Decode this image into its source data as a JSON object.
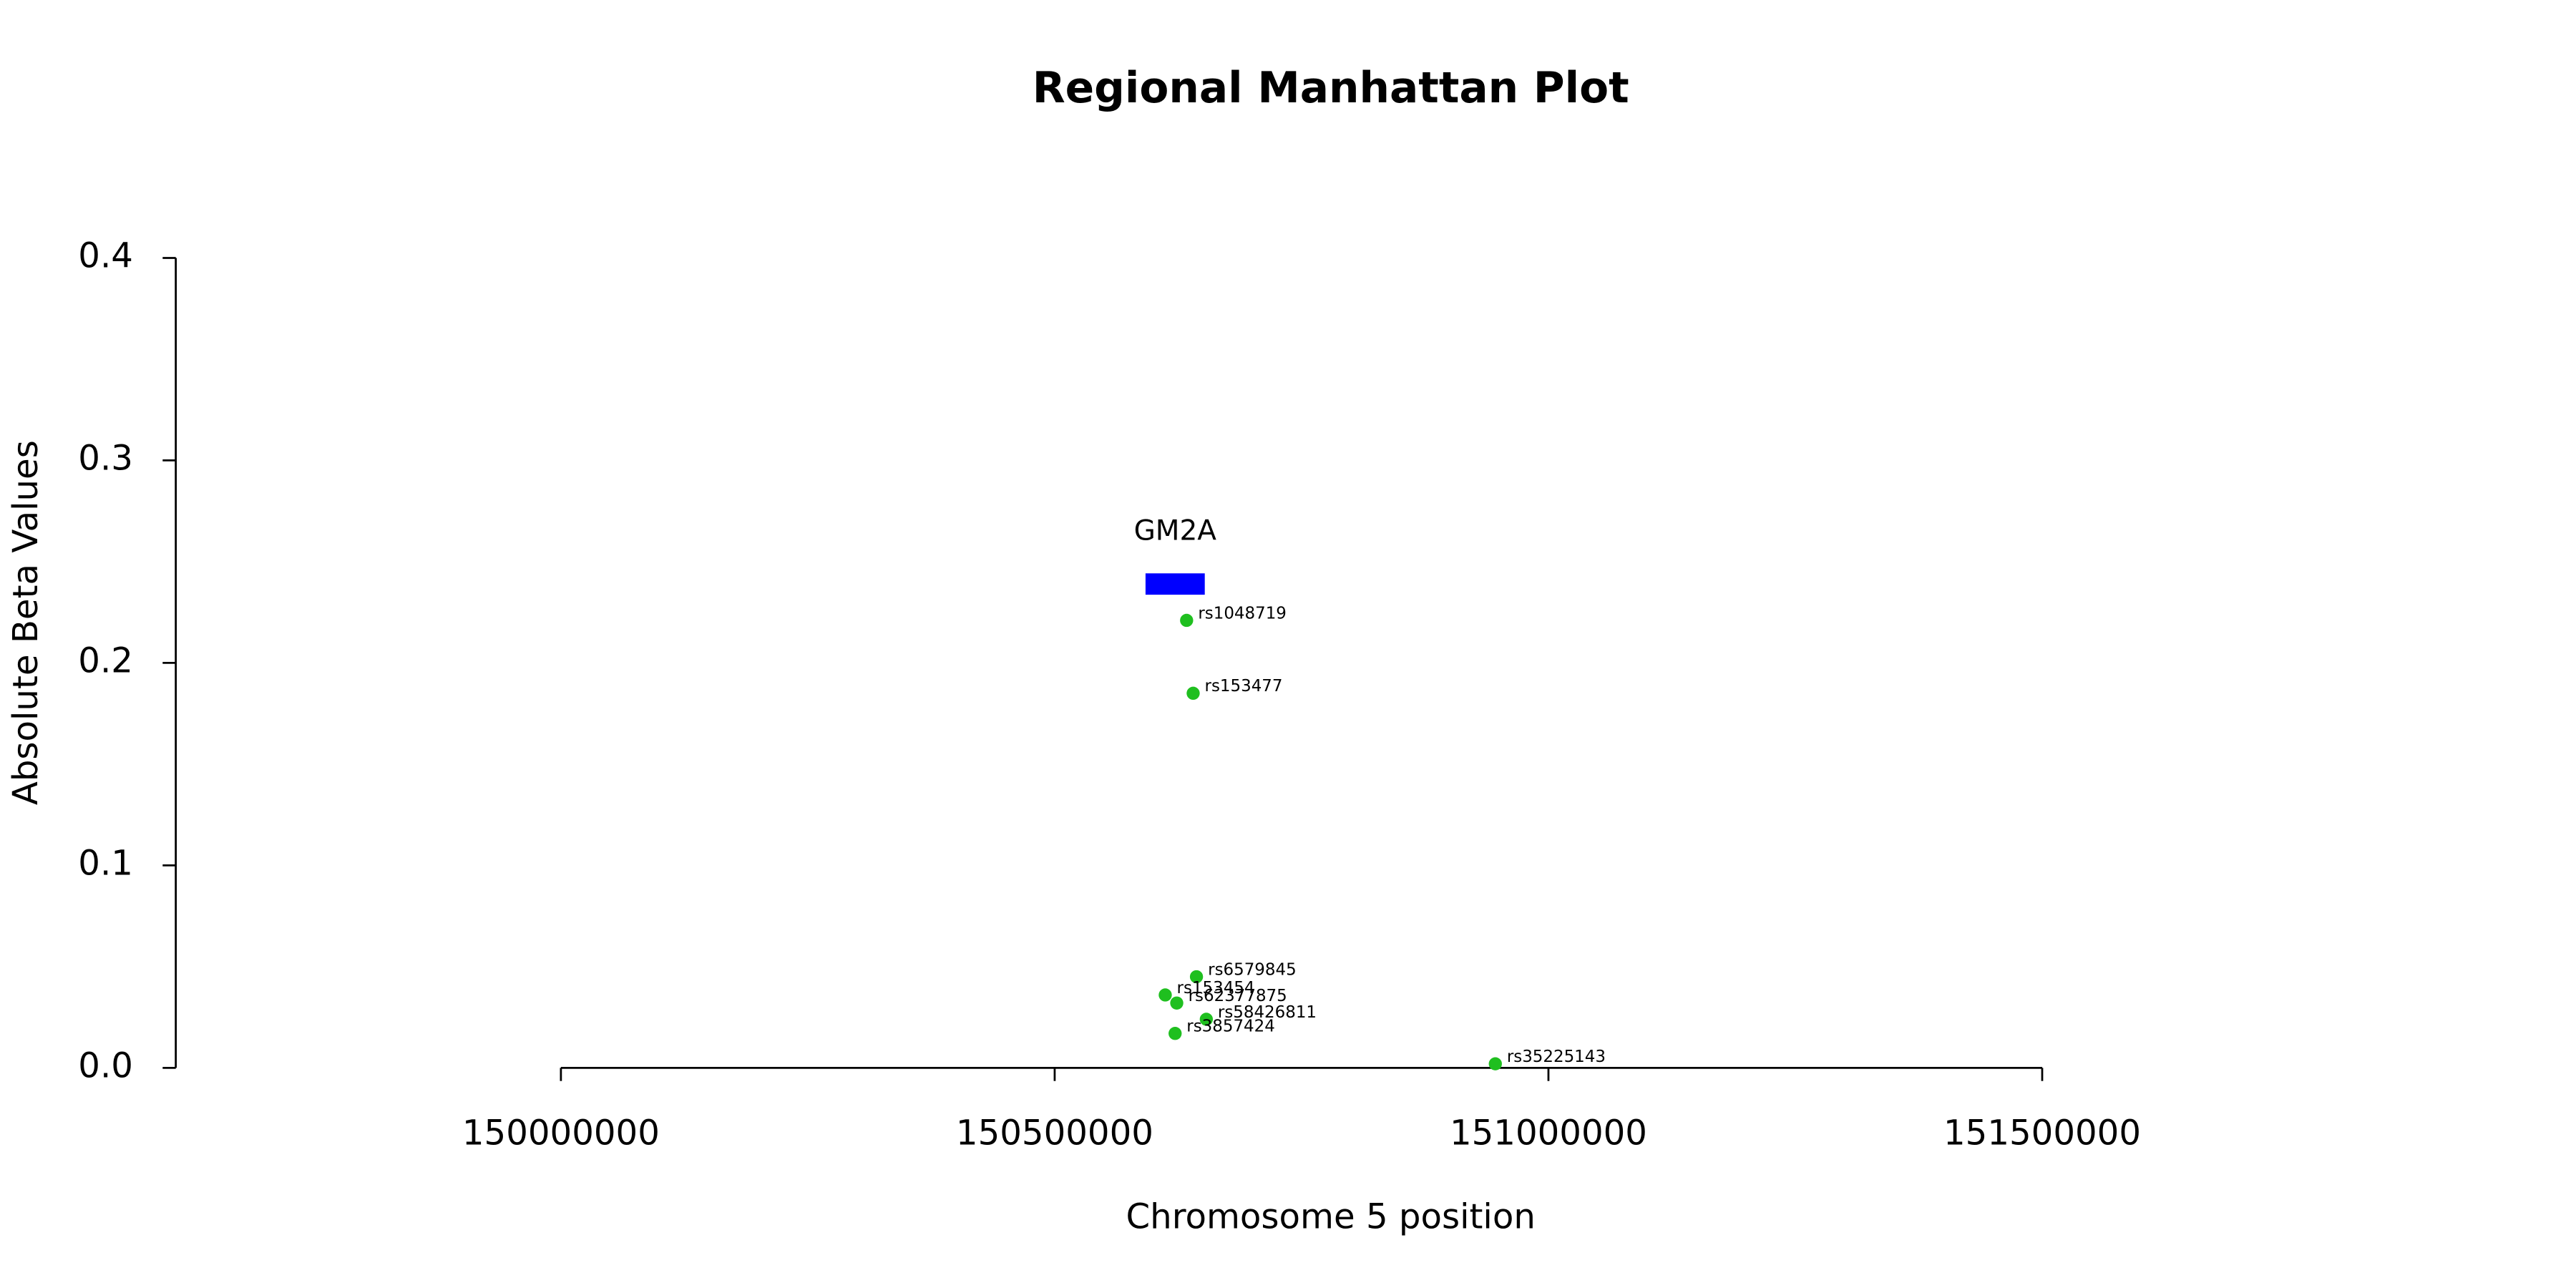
{
  "chart_data": {
    "type": "scatter",
    "title": "Regional Manhattan Plot",
    "x_label": "Chromosome 5 position",
    "y_label": "Absolute Beta Values",
    "x": [
      150633600,
      150640250,
      150643580,
      150611980,
      150623620,
      150653550,
      150621960,
      150946230
    ],
    "values": [
      0.221,
      0.185,
      0.045,
      0.036,
      0.032,
      0.024,
      0.017,
      0.002
    ],
    "labels": [
      "rs1048719",
      "rs153477",
      "rs6579845",
      "rs153454",
      "rs62377875",
      "rs58426811",
      "rs3857424",
      "rs35225143"
    ],
    "color": "#1fbf1f",
    "genes": [
      {
        "name": "GM2A",
        "start": 150592000,
        "end": 150652000,
        "color": "#0000ff"
      }
    ],
    "xlim": [
      149610000,
      151890000
    ],
    "ylim": [
      0,
      0.4
    ],
    "xticks": [
      150000000,
      150500000,
      151000000,
      151500000
    ],
    "yticks": [
      {
        "value": 0,
        "label": "0.0"
      },
      0.1,
      0.2,
      0.3,
      0.4
    ]
  }
}
